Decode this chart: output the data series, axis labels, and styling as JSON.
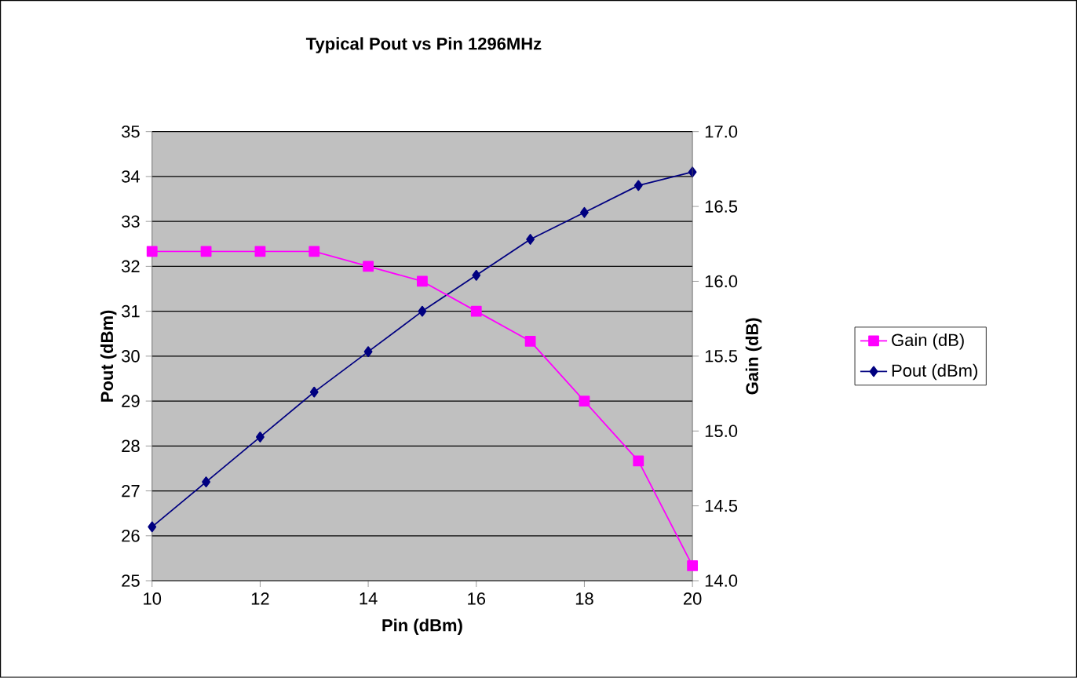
{
  "chart_data": {
    "type": "line",
    "title": "Typical Pout vs Pin 1296MHz",
    "xlabel": "Pin (dBm)",
    "ylabel": "Pout (dBm)",
    "y2label": "Gain (dB)",
    "x": [
      10,
      11,
      12,
      13,
      14,
      15,
      16,
      17,
      18,
      19,
      20
    ],
    "series": [
      {
        "name": "Pout (dBm)",
        "color": "#000080",
        "marker": "diamond",
        "values": [
          26.2,
          27.2,
          28.2,
          29.2,
          30.1,
          31.0,
          31.8,
          32.6,
          33.2,
          33.8,
          34.1
        ]
      },
      {
        "name": "Gain (dB)",
        "color": "#ff00ff",
        "marker": "square",
        "axis": "y2",
        "values": [
          16.2,
          16.2,
          16.2,
          16.2,
          16.1,
          16.0,
          15.8,
          15.6,
          15.2,
          14.8,
          14.1
        ]
      }
    ],
    "xlim": [
      10,
      20
    ],
    "xticks": [
      10,
      12,
      14,
      16,
      18,
      20
    ],
    "ylim": [
      25,
      35
    ],
    "yticks": [
      25,
      26,
      27,
      28,
      29,
      30,
      31,
      32,
      33,
      34,
      35
    ],
    "y2lim": [
      14,
      17
    ],
    "y2ticks": [
      {
        "value": 14,
        "label": "14.0"
      },
      {
        "value": 14.5,
        "label": "14.5"
      },
      {
        "value": 15,
        "label": "15.0"
      },
      {
        "value": 15.5,
        "label": "15.5"
      },
      {
        "value": 16,
        "label": "16.0"
      },
      {
        "value": 16.5,
        "label": "16.5"
      },
      {
        "value": 17,
        "label": "17.0"
      }
    ],
    "grid": "y",
    "legend": "right"
  }
}
